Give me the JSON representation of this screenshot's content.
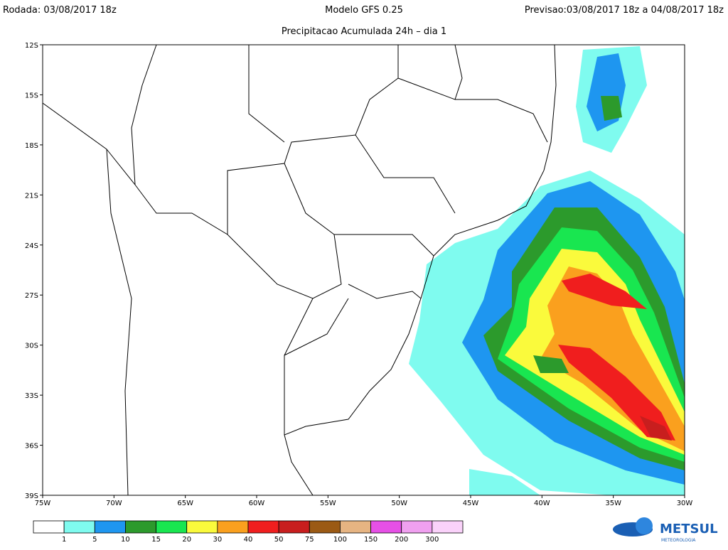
{
  "header": {
    "run": "Rodada: 03/08/2017 18z",
    "model": "Modelo GFS 0.25",
    "forecast": "Previsao:03/08/2017 18z a 04/08/2017 18z",
    "subtitle": "Precipitacao Acumulada 24h – dia 1"
  },
  "map": {
    "lat_labels": [
      "12S",
      "15S",
      "18S",
      "21S",
      "24S",
      "27S",
      "30S",
      "33S",
      "36S",
      "39S"
    ],
    "lon_labels": [
      "75W",
      "70W",
      "65W",
      "60W",
      "55W",
      "50W",
      "45W",
      "40W",
      "35W",
      "30W"
    ]
  },
  "legend": {
    "levels": [
      1,
      5,
      10,
      15,
      20,
      30,
      40,
      50,
      75,
      100,
      150,
      200,
      300
    ],
    "colors": [
      "#ffffff",
      "#7ffbef",
      "#1e96f0",
      "#2c9a2c",
      "#19e650",
      "#fafa3c",
      "#faa01e",
      "#f01e1e",
      "#c81e1e",
      "#9b5a14",
      "#e6b482",
      "#e650e6",
      "#f0a0f0",
      "#fad2fa"
    ]
  },
  "logo": {
    "name": "METSUL",
    "tagline": "METEOROLOGIA"
  }
}
